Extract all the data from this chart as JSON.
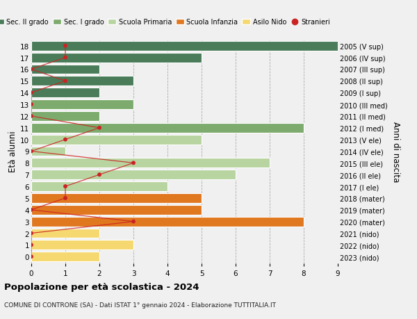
{
  "ages": [
    18,
    17,
    16,
    15,
    14,
    13,
    12,
    11,
    10,
    9,
    8,
    7,
    6,
    5,
    4,
    3,
    2,
    1,
    0
  ],
  "years": [
    "2005 (V sup)",
    "2006 (IV sup)",
    "2007 (III sup)",
    "2008 (II sup)",
    "2009 (I sup)",
    "2010 (III med)",
    "2011 (II med)",
    "2012 (I med)",
    "2013 (V ele)",
    "2014 (IV ele)",
    "2015 (III ele)",
    "2016 (II ele)",
    "2017 (I ele)",
    "2018 (mater)",
    "2019 (mater)",
    "2020 (mater)",
    "2021 (nido)",
    "2022 (nido)",
    "2023 (nido)"
  ],
  "bar_values": [
    9,
    5,
    2,
    3,
    2,
    3,
    2,
    8,
    5,
    1,
    7,
    6,
    4,
    5,
    5,
    8,
    2,
    3,
    2
  ],
  "bar_colors": [
    "#4a7c59",
    "#4a7c59",
    "#4a7c59",
    "#4a7c59",
    "#4a7c59",
    "#7dab6e",
    "#7dab6e",
    "#7dab6e",
    "#b8d4a0",
    "#b8d4a0",
    "#b8d4a0",
    "#b8d4a0",
    "#b8d4a0",
    "#e07820",
    "#e07820",
    "#e07820",
    "#f5d870",
    "#f5d870",
    "#f5d870"
  ],
  "stranieri_x": [
    1,
    1,
    0,
    1,
    0,
    0,
    0,
    2,
    1,
    0,
    3,
    2,
    1,
    1,
    0,
    3,
    0,
    0,
    0
  ],
  "legend_labels": [
    "Sec. II grado",
    "Sec. I grado",
    "Scuola Primaria",
    "Scuola Infanzia",
    "Asilo Nido",
    "Stranieri"
  ],
  "legend_colors": [
    "#4a7c59",
    "#7dab6e",
    "#b8d4a0",
    "#e07820",
    "#f5d870",
    "#cc2222"
  ],
  "title": "Popolazione per età scolastica - 2024",
  "subtitle": "COMUNE DI CONTRONE (SA) - Dati ISTAT 1° gennaio 2024 - Elaborazione TUTTITALIA.IT",
  "ylabel": "Età alunni",
  "ylabel_right": "Anni di nascita",
  "xlim": [
    0,
    9
  ],
  "bg_color": "#f0f0f0",
  "plot_bg_color": "#f0f0f0"
}
